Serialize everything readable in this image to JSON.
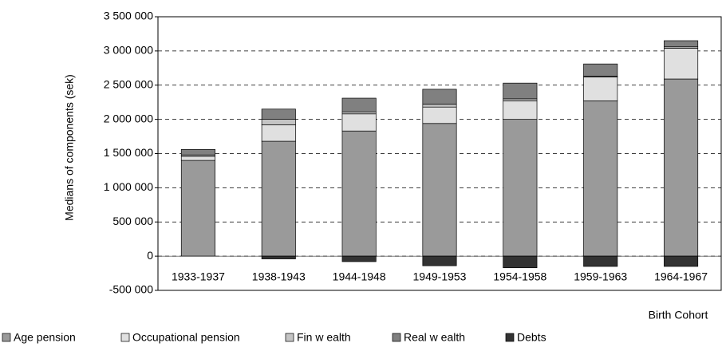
{
  "chart_data": {
    "type": "bar",
    "stacked": true,
    "x_label": "Birth Cohort",
    "y_label": "Medians of components (sek)",
    "categories": [
      "1933-1937",
      "1938-1943",
      "1944-1948",
      "1949-1953",
      "1954-1958",
      "1959-1963",
      "1964-1967"
    ],
    "series": [
      {
        "name": "Age pension",
        "color": "#9a9a9a",
        "values": [
          1400000,
          1680000,
          1830000,
          1940000,
          2000000,
          2270000,
          2590000
        ]
      },
      {
        "name": "Occupational pension",
        "color": "#e0e0e0",
        "values": [
          60000,
          240000,
          250000,
          240000,
          270000,
          350000,
          450000
        ]
      },
      {
        "name": "Fin w ealth",
        "color": "#c4c4c4",
        "values": [
          20000,
          80000,
          30000,
          40000,
          30000,
          10000,
          20000
        ]
      },
      {
        "name": "Real w ealth",
        "color": "#808080",
        "values": [
          80000,
          150000,
          200000,
          220000,
          230000,
          180000,
          90000
        ]
      },
      {
        "name": "Debts",
        "color": "#333333",
        "values": [
          0,
          -40000,
          -80000,
          -140000,
          -170000,
          -150000,
          -150000
        ]
      }
    ],
    "ylim": [
      -500000,
      3500000
    ],
    "yticks": [
      {
        "value": -500000,
        "label": "-500 000"
      },
      0,
      {
        "value": 500000,
        "label": "500 000"
      },
      {
        "value": 1000000,
        "label": "1 000 000"
      },
      {
        "value": 1500000,
        "label": "1 500 000"
      },
      {
        "value": 2000000,
        "label": "2 000 000"
      },
      {
        "value": 2500000,
        "label": "2 500 000"
      },
      {
        "value": 3000000,
        "label": "3 000 000"
      },
      {
        "value": 3500000,
        "label": "3 500 000"
      }
    ],
    "grid": true
  }
}
